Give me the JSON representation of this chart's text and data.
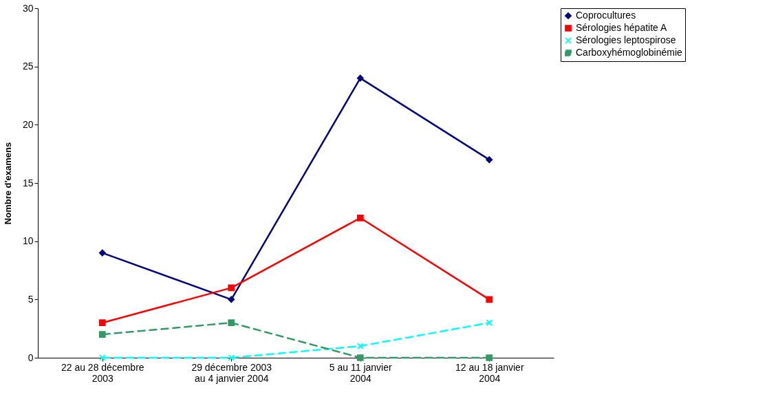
{
  "chart_data": {
    "type": "line",
    "ylabel": "Nombre d'examens",
    "categories": [
      "22 au 28 décembre 2003",
      "29 décembre 2003 au 4 janvier 2004",
      "5 au 11 janvier 2004",
      "12 au 18 janvier 2004"
    ],
    "ylim": [
      0,
      30
    ],
    "yticks": [
      0,
      5,
      10,
      15,
      20,
      25,
      30
    ],
    "grid": false,
    "legend": "right",
    "series": [
      {
        "name": "Coprocultures",
        "color": "#000080",
        "values": [
          9,
          5,
          24,
          17
        ],
        "marker": "diamond",
        "line_style": "solid"
      },
      {
        "name": "Sérologies hépatite A",
        "color": "#ff0000",
        "values": [
          3,
          6,
          12,
          5
        ],
        "marker": "square",
        "line_style": "solid"
      },
      {
        "name": "Sérologies leptospirose",
        "color": "#00ffff",
        "values": [
          0,
          0,
          1,
          3
        ],
        "marker": "cross",
        "line_style": "dashed"
      },
      {
        "name": "Carboxyhémoglobinémie",
        "color": "#339966",
        "values": [
          2,
          3,
          0,
          0
        ],
        "marker": "square",
        "line_style": "dashed"
      }
    ]
  }
}
